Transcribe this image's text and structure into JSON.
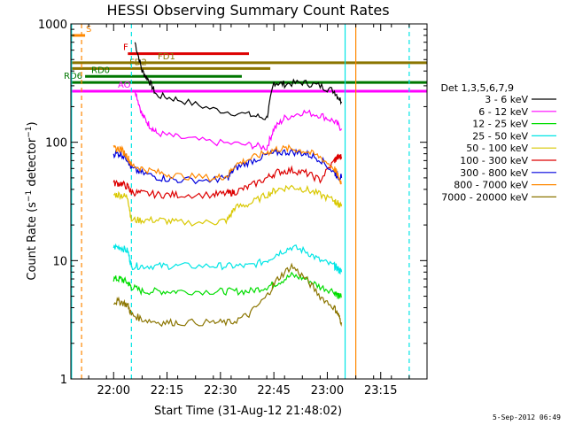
{
  "chart_data": {
    "type": "line",
    "title": "HESSI Observing Summary Count Rates",
    "xlabel": "Start Time (31-Aug-12 21:48:02)",
    "ylabel": "Count Rate (s⁻¹ detector⁻¹)",
    "yscale": "log",
    "ylim": [
      1,
      1000
    ],
    "xlim_minutes": [
      0,
      100
    ],
    "x_ticks": [
      {
        "label": "22:00",
        "minute": 12
      },
      {
        "label": "22:15",
        "minute": 27
      },
      {
        "label": "22:30",
        "minute": 42
      },
      {
        "label": "22:45",
        "minute": 57
      },
      {
        "label": "23:00",
        "minute": 72
      },
      {
        "label": "23:15",
        "minute": 87
      }
    ],
    "y_ticks": [
      {
        "label": "1",
        "value": 1
      },
      {
        "label": "10",
        "value": 10
      },
      {
        "label": "100",
        "value": 100
      },
      {
        "label": "1000",
        "value": 1000
      }
    ],
    "legend_title": "Det 1,3,5,6,7,9",
    "legend_position": "right",
    "series": [
      {
        "name": "3 - 6 keV",
        "color": "#000000",
        "x": [
          18,
          20,
          22,
          24,
          30,
          40,
          50,
          55,
          57,
          60,
          65,
          70,
          74,
          76
        ],
        "y": [
          700,
          400,
          330,
          250,
          230,
          190,
          170,
          160,
          320,
          310,
          320,
          300,
          270,
          220
        ]
      },
      {
        "name": "6 - 12 keV",
        "color": "#ff00ff",
        "x": [
          18,
          20,
          22,
          24,
          30,
          40,
          50,
          55,
          57,
          60,
          65,
          70,
          74,
          76
        ],
        "y": [
          280,
          170,
          140,
          120,
          110,
          100,
          95,
          90,
          130,
          160,
          180,
          170,
          150,
          130
        ]
      },
      {
        "name": "12 - 25 keV",
        "color": "#00dd00",
        "x": [
          12,
          14,
          16,
          17,
          20,
          25,
          30,
          40,
          45,
          50,
          55,
          58,
          62,
          66,
          70,
          74,
          75,
          76
        ],
        "y": [
          7,
          7,
          6.5,
          6,
          5.5,
          5.5,
          5.5,
          5.5,
          5.5,
          5.5,
          6,
          6.5,
          7.5,
          7,
          6,
          5.5,
          5,
          5
        ]
      },
      {
        "name": "25 - 50 keV",
        "color": "#00e5e5",
        "x": [
          12,
          14,
          16,
          17,
          20,
          25,
          30,
          40,
          45,
          50,
          55,
          58,
          62,
          66,
          70,
          74,
          75,
          76
        ],
        "y": [
          13,
          13,
          12,
          9,
          9,
          9,
          9,
          9,
          9,
          9,
          10,
          11.5,
          13,
          12,
          10,
          9,
          8.5,
          8
        ]
      },
      {
        "name": "50 - 100 keV",
        "color": "#d9c800",
        "x": [
          12,
          14,
          16,
          17,
          20,
          25,
          30,
          40,
          44,
          46,
          50,
          55,
          58,
          62,
          66,
          70,
          74,
          75,
          76
        ],
        "y": [
          36,
          36,
          34,
          22,
          22,
          22,
          21,
          21,
          22,
          28,
          30,
          36,
          40,
          42,
          40,
          36,
          32,
          30,
          30
        ]
      },
      {
        "name": "100 - 300 keV",
        "color": "#dd0000",
        "x": [
          12,
          14,
          16,
          17,
          20,
          25,
          30,
          40,
          44,
          46,
          50,
          55,
          58,
          62,
          66,
          70,
          74,
          75,
          76
        ],
        "y": [
          45,
          45,
          42,
          38,
          37,
          36,
          36,
          36,
          37,
          38,
          42,
          50,
          56,
          58,
          55,
          48,
          70,
          75,
          75
        ]
      },
      {
        "name": "300 - 800 keV",
        "color": "#0000dd",
        "x": [
          12,
          14,
          16,
          17,
          20,
          25,
          30,
          40,
          44,
          46,
          50,
          55,
          58,
          62,
          66,
          70,
          74,
          75,
          76
        ],
        "y": [
          80,
          80,
          72,
          60,
          55,
          50,
          48,
          48,
          50,
          60,
          68,
          78,
          82,
          83,
          80,
          72,
          55,
          52,
          50
        ]
      },
      {
        "name": "800 - 7000 keV",
        "color": "#ff8800",
        "x": [
          12,
          14,
          16,
          17,
          20,
          25,
          30,
          40,
          44,
          46,
          50,
          55,
          58,
          62,
          66,
          70,
          74,
          75,
          76
        ],
        "y": [
          88,
          88,
          75,
          64,
          60,
          55,
          52,
          50,
          52,
          64,
          72,
          82,
          88,
          88,
          84,
          75,
          60,
          52,
          45
        ]
      },
      {
        "name": "7000 - 20000 keV",
        "color": "#8b7500",
        "x": [
          12,
          14,
          16,
          17,
          20,
          25,
          30,
          40,
          45,
          50,
          55,
          58,
          62,
          66,
          70,
          74,
          75,
          76
        ],
        "y": [
          4.5,
          4.5,
          4.2,
          3.5,
          3.2,
          3,
          3,
          3,
          3,
          3.5,
          5,
          7,
          9,
          7,
          5,
          4,
          3.5,
          3
        ]
      }
    ],
    "markers": [
      {
        "label": "S",
        "color": "#ff8800",
        "value": 800,
        "x0": 0,
        "x1": 4
      },
      {
        "label": "F",
        "color": "#dd0000",
        "value": 560,
        "x0": 16,
        "x1": 50
      },
      {
        "label": "FD1",
        "color": "#8b7500",
        "value": 470,
        "x0": 0,
        "x1": 100
      },
      {
        "label": "FD2",
        "color": "#8b7500",
        "value": 420,
        "x0": 0,
        "x1": 56
      },
      {
        "label": "RD0",
        "color": "#007700",
        "value": 360,
        "x0": 4,
        "x1": 48
      },
      {
        "label": "RD6",
        "color": "#007700",
        "value": 320,
        "x0": 0,
        "x1": 100
      },
      {
        "label": "AO",
        "color": "#ff00ff",
        "value": 270,
        "x0": 0,
        "x1": 100
      }
    ],
    "vertical_lines": [
      {
        "color": "#00e5e5",
        "minute": 0.2,
        "dashed": false
      },
      {
        "color": "#ff8800",
        "minute": 3,
        "dashed": true
      },
      {
        "color": "#00e5e5",
        "minute": 17,
        "dashed": true
      },
      {
        "color": "#00e5e5",
        "minute": 77,
        "dashed": false
      },
      {
        "color": "#ff8800",
        "minute": 80,
        "dashed": false
      },
      {
        "color": "#00e5e5",
        "minute": 95,
        "dashed": true
      }
    ],
    "grid": false
  },
  "footer": "5-Sep-2012 06:49"
}
